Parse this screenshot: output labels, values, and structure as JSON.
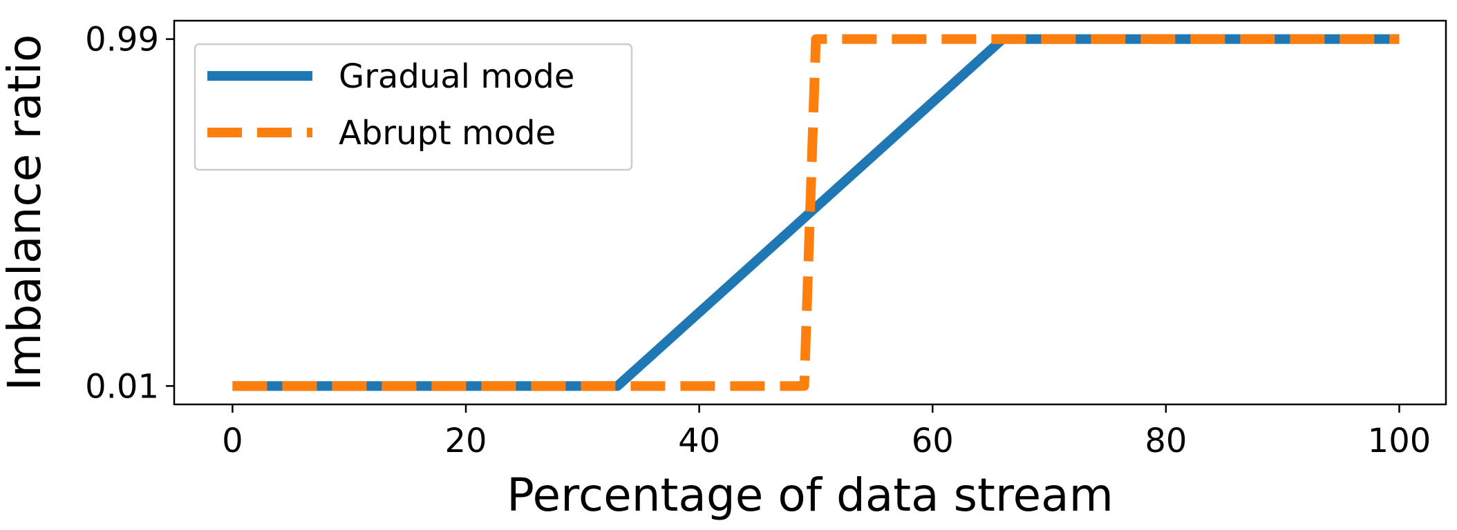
{
  "chart_data": {
    "type": "line",
    "title": "",
    "xlabel": "Percentage of data stream",
    "ylabel": "Imbalance ratio",
    "xlim": [
      -5,
      104
    ],
    "ylim": [
      -0.042,
      1.042
    ],
    "xticks": [
      0,
      20,
      40,
      60,
      80,
      100
    ],
    "xtick_labels": [
      "0",
      "20",
      "40",
      "60",
      "80",
      "100"
    ],
    "yticks": [
      0.01,
      0.99
    ],
    "ytick_labels": [
      "0.01",
      "0.99"
    ],
    "grid": false,
    "legend_position": "top-left",
    "series": [
      {
        "name": "Gradual mode",
        "style": "solid",
        "color": "#1f77b4",
        "x": [
          0,
          33,
          66,
          100
        ],
        "y": [
          0.01,
          0.01,
          0.99,
          0.99
        ]
      },
      {
        "name": "Abrupt mode",
        "style": "dashed",
        "color": "#ff7f0e",
        "x": [
          0,
          49,
          50,
          100
        ],
        "y": [
          0.01,
          0.01,
          0.99,
          0.99
        ]
      }
    ]
  }
}
